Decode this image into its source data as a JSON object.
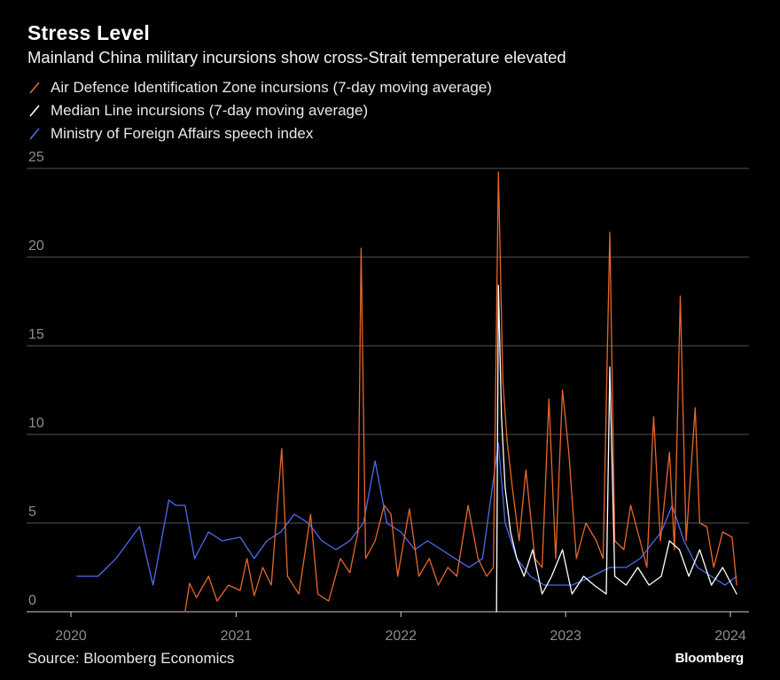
{
  "header": {
    "title": "Stress Level",
    "subtitle": "Mainland China military incursions show cross-Strait temperature elevated"
  },
  "footer": {
    "source": "Source: Bloomberg Economics",
    "brand": "Bloomberg"
  },
  "colors": {
    "background": "#000000",
    "adiz": "#e8672a",
    "median": "#ffffff",
    "mofa": "#4f6bf2",
    "grid": "#555555"
  },
  "chart_data": {
    "type": "line",
    "title": "Stress Level",
    "subtitle": "Mainland China military incursions show cross-Strait temperature elevated",
    "xlabel": "",
    "ylabel": "",
    "x_ticks": [
      "2020",
      "2021",
      "2022",
      "2023",
      "2024"
    ],
    "y_ticks": [
      0,
      5,
      10,
      15,
      20,
      25
    ],
    "xlim": [
      "2020-01-01",
      "2024-02-01"
    ],
    "ylim": [
      0,
      25
    ],
    "grid": "horizontal",
    "legend_placement": "top-left",
    "series": [
      {
        "name": "Air Defence Identification Zone incursions (7-day moving average)",
        "color": "#e8672a",
        "points": [
          [
            "2020-09-10",
            0
          ],
          [
            "2020-09-20",
            1.6
          ],
          [
            "2020-10-05",
            0.8
          ],
          [
            "2020-11-01",
            2.0
          ],
          [
            "2020-11-20",
            0.6
          ],
          [
            "2020-12-15",
            1.5
          ],
          [
            "2021-01-10",
            1.2
          ],
          [
            "2021-01-25",
            3.0
          ],
          [
            "2021-02-10",
            0.9
          ],
          [
            "2021-03-01",
            2.5
          ],
          [
            "2021-03-20",
            1.5
          ],
          [
            "2021-04-12",
            9.2
          ],
          [
            "2021-04-25",
            2.0
          ],
          [
            "2021-05-20",
            1.0
          ],
          [
            "2021-06-15",
            5.5
          ],
          [
            "2021-07-01",
            1.0
          ],
          [
            "2021-07-25",
            0.6
          ],
          [
            "2021-08-20",
            3.0
          ],
          [
            "2021-09-10",
            2.2
          ],
          [
            "2021-09-28",
            4.5
          ],
          [
            "2021-10-05",
            20.5
          ],
          [
            "2021-10-15",
            3.0
          ],
          [
            "2021-11-05",
            4.0
          ],
          [
            "2021-11-25",
            6.0
          ],
          [
            "2021-12-10",
            5.5
          ],
          [
            "2021-12-25",
            2.0
          ],
          [
            "2022-01-20",
            5.8
          ],
          [
            "2022-02-10",
            2.0
          ],
          [
            "2022-03-05",
            3.0
          ],
          [
            "2022-03-25",
            1.5
          ],
          [
            "2022-04-15",
            2.5
          ],
          [
            "2022-05-05",
            2.0
          ],
          [
            "2022-05-30",
            6.0
          ],
          [
            "2022-06-21",
            3.0
          ],
          [
            "2022-07-10",
            2.0
          ],
          [
            "2022-07-25",
            2.5
          ],
          [
            "2022-08-05",
            24.8
          ],
          [
            "2022-08-15",
            13.0
          ],
          [
            "2022-08-25",
            9.5
          ],
          [
            "2022-09-05",
            7.0
          ],
          [
            "2022-09-20",
            4.0
          ],
          [
            "2022-10-05",
            8.0
          ],
          [
            "2022-10-25",
            3.0
          ],
          [
            "2022-11-10",
            2.5
          ],
          [
            "2022-11-25",
            12.0
          ],
          [
            "2022-12-10",
            3.0
          ],
          [
            "2022-12-25",
            12.5
          ],
          [
            "2023-01-08",
            9.0
          ],
          [
            "2023-01-25",
            3.0
          ],
          [
            "2023-02-15",
            5.0
          ],
          [
            "2023-03-10",
            4.0
          ],
          [
            "2023-03-25",
            3.0
          ],
          [
            "2023-04-09",
            21.4
          ],
          [
            "2023-04-20",
            4.0
          ],
          [
            "2023-05-10",
            3.5
          ],
          [
            "2023-05-25",
            6.0
          ],
          [
            "2023-06-15",
            4.0
          ],
          [
            "2023-06-30",
            2.5
          ],
          [
            "2023-07-15",
            11.0
          ],
          [
            "2023-07-30",
            4.0
          ],
          [
            "2023-08-19",
            9.0
          ],
          [
            "2023-08-30",
            3.5
          ],
          [
            "2023-09-12",
            17.8
          ],
          [
            "2023-09-25",
            4.0
          ],
          [
            "2023-10-15",
            11.5
          ],
          [
            "2023-10-25",
            5.0
          ],
          [
            "2023-11-10",
            4.8
          ],
          [
            "2023-11-25",
            2.5
          ],
          [
            "2023-12-15",
            4.5
          ],
          [
            "2024-01-05",
            4.2
          ],
          [
            "2024-01-15",
            1.5
          ]
        ]
      },
      {
        "name": "Median Line incursions (7-day moving average)",
        "color": "#ffffff",
        "points": [
          [
            "2022-08-01",
            0
          ],
          [
            "2022-08-05",
            18.4
          ],
          [
            "2022-08-12",
            11.0
          ],
          [
            "2022-08-20",
            7.0
          ],
          [
            "2022-09-01",
            4.5
          ],
          [
            "2022-09-15",
            3.0
          ],
          [
            "2022-10-01",
            2.0
          ],
          [
            "2022-10-20",
            3.5
          ],
          [
            "2022-11-10",
            1.0
          ],
          [
            "2022-12-01",
            2.0
          ],
          [
            "2022-12-25",
            3.5
          ],
          [
            "2023-01-15",
            1.0
          ],
          [
            "2023-02-10",
            2.0
          ],
          [
            "2023-03-05",
            1.5
          ],
          [
            "2023-04-01",
            1.0
          ],
          [
            "2023-04-09",
            13.8
          ],
          [
            "2023-04-20",
            2.0
          ],
          [
            "2023-05-15",
            1.5
          ],
          [
            "2023-06-10",
            2.5
          ],
          [
            "2023-07-05",
            1.5
          ],
          [
            "2023-08-01",
            2.0
          ],
          [
            "2023-08-19",
            4.0
          ],
          [
            "2023-09-10",
            3.5
          ],
          [
            "2023-10-01",
            2.0
          ],
          [
            "2023-10-25",
            3.5
          ],
          [
            "2023-11-20",
            1.5
          ],
          [
            "2023-12-15",
            2.5
          ],
          [
            "2024-01-15",
            1.0
          ]
        ]
      },
      {
        "name": "Ministry of Foreign Affairs speech index",
        "color": "#4f6bf2",
        "points": [
          [
            "2020-01-15",
            2.0
          ],
          [
            "2020-02-10",
            2.0
          ],
          [
            "2020-03-01",
            2.0
          ],
          [
            "2020-04-10",
            3.0
          ],
          [
            "2020-06-01",
            4.8
          ],
          [
            "2020-07-01",
            1.5
          ],
          [
            "2020-08-05",
            6.3
          ],
          [
            "2020-08-20",
            6.0
          ],
          [
            "2020-09-10",
            6.0
          ],
          [
            "2020-10-01",
            3.0
          ],
          [
            "2020-11-01",
            4.5
          ],
          [
            "2020-12-01",
            4.0
          ],
          [
            "2021-01-10",
            4.2
          ],
          [
            "2021-02-10",
            3.0
          ],
          [
            "2021-03-10",
            4.0
          ],
          [
            "2021-04-10",
            4.5
          ],
          [
            "2021-05-10",
            5.5
          ],
          [
            "2021-06-10",
            5.0
          ],
          [
            "2021-07-10",
            4.0
          ],
          [
            "2021-08-10",
            3.5
          ],
          [
            "2021-09-10",
            4.0
          ],
          [
            "2021-10-10",
            5.0
          ],
          [
            "2021-11-05",
            8.5
          ],
          [
            "2021-12-01",
            5.0
          ],
          [
            "2022-01-01",
            4.5
          ],
          [
            "2022-02-01",
            3.5
          ],
          [
            "2022-03-01",
            4.0
          ],
          [
            "2022-04-01",
            3.5
          ],
          [
            "2022-05-01",
            3.0
          ],
          [
            "2022-06-01",
            2.5
          ],
          [
            "2022-07-01",
            3.0
          ],
          [
            "2022-08-05",
            9.5
          ],
          [
            "2022-08-20",
            5.0
          ],
          [
            "2022-09-15",
            3.0
          ],
          [
            "2022-10-15",
            2.0
          ],
          [
            "2022-11-15",
            1.5
          ],
          [
            "2022-12-15",
            1.5
          ],
          [
            "2023-01-15",
            1.5
          ],
          [
            "2023-03-01",
            2.0
          ],
          [
            "2023-04-09",
            2.5
          ],
          [
            "2023-05-15",
            2.5
          ],
          [
            "2023-06-15",
            3.0
          ],
          [
            "2023-08-01",
            4.5
          ],
          [
            "2023-08-25",
            6.0
          ],
          [
            "2023-09-20",
            4.0
          ],
          [
            "2023-10-20",
            2.5
          ],
          [
            "2023-11-20",
            2.0
          ],
          [
            "2023-12-20",
            1.5
          ],
          [
            "2024-01-15",
            2.0
          ]
        ]
      }
    ]
  }
}
